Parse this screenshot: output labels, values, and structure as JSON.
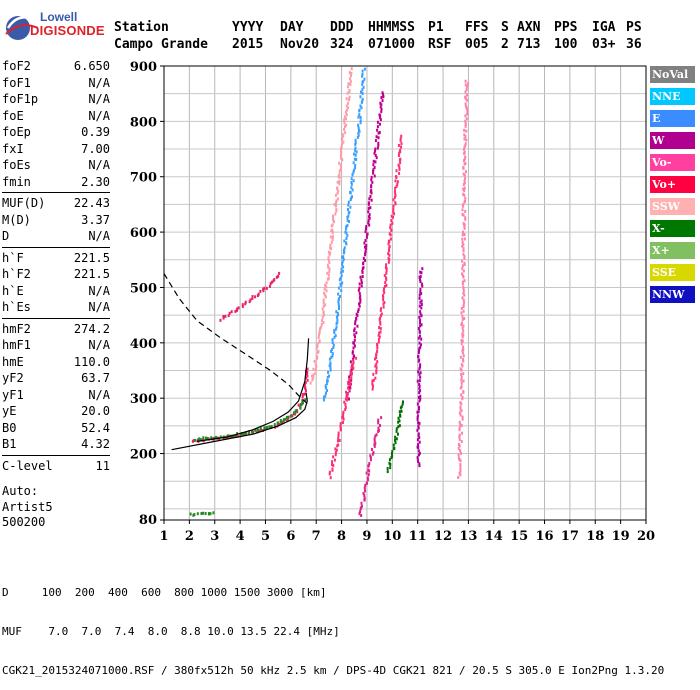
{
  "logo": {
    "line1": "Lowell",
    "line2": "DIGISONDE"
  },
  "header": {
    "labels": [
      "Station",
      "YYYY",
      "DAY",
      "DDD",
      "HHMMSS",
      "P1",
      "FFS",
      "S",
      "AXN",
      "PPS",
      "IGA",
      "PS"
    ],
    "values": [
      "Campo Grande",
      "2015",
      "Nov20",
      "324",
      "071000",
      "RSF",
      "005",
      "2",
      "713",
      "100",
      "03+",
      "36"
    ]
  },
  "params": {
    "group1": [
      [
        "foF2",
        "6.650"
      ],
      [
        "foF1",
        "N/A"
      ],
      [
        "foF1p",
        "N/A"
      ],
      [
        "foE",
        "N/A"
      ],
      [
        "foEp",
        "0.39"
      ],
      [
        "fxI",
        "7.00"
      ],
      [
        "foEs",
        "N/A"
      ],
      [
        "fmin",
        "2.30"
      ]
    ],
    "group2": [
      [
        "MUF(D)",
        "22.43"
      ],
      [
        "M(D)",
        "3.37"
      ],
      [
        "D",
        "N/A"
      ]
    ],
    "group3": [
      [
        "h`F",
        "221.5"
      ],
      [
        "h`F2",
        "221.5"
      ],
      [
        "h`E",
        "N/A"
      ],
      [
        "h`Es",
        "N/A"
      ]
    ],
    "group4": [
      [
        "hmF2",
        "274.2"
      ],
      [
        "hmF1",
        "N/A"
      ],
      [
        "hmE",
        "110.0"
      ],
      [
        "yF2",
        "63.7"
      ],
      [
        "yF1",
        "N/A"
      ],
      [
        "yE",
        "20.0"
      ],
      [
        "B0",
        "52.4"
      ],
      [
        "B1",
        "4.32"
      ]
    ],
    "group5": [
      [
        "C-level",
        "11"
      ]
    ]
  },
  "auto": {
    "line1": "Auto:",
    "line2": "Artist5",
    "line3": "500200"
  },
  "legend": [
    {
      "label": "NoVal",
      "color": "#808080"
    },
    {
      "label": "NNE",
      "color": "#00c8ff"
    },
    {
      "label": "E",
      "color": "#3a8cff"
    },
    {
      "label": "W",
      "color": "#b00090"
    },
    {
      "label": "Vo-",
      "color": "#ff40a0"
    },
    {
      "label": "Vo+",
      "color": "#ff0040"
    },
    {
      "label": "SSW",
      "color": "#ffb0b0"
    },
    {
      "label": "X-",
      "color": "#007800"
    },
    {
      "label": "X+",
      "color": "#80c060"
    },
    {
      "label": "SSE",
      "color": "#d8d800"
    },
    {
      "label": "NNW",
      "color": "#1010c0"
    }
  ],
  "footer": {
    "line1": "D     100  200  400  600  800 1000 1500 3000 [km]",
    "line2": "MUF    7.0  7.0  7.4  8.0  8.8 10.0 13.5 22.4 [MHz]",
    "line3": "CGK21_2015324071000.RSF / 380fx512h 50 kHz 2.5 km / DPS-4D CGK21 821 / 20.5 S 305.0 E Ion2Png 1.3.20"
  },
  "chart_data": {
    "type": "scatter",
    "xlim": [
      1,
      20
    ],
    "ylim": [
      80,
      900
    ],
    "xticks": [
      "1",
      "2",
      "3",
      "4",
      "5",
      "6",
      "7",
      "8",
      "9",
      "10",
      "11",
      "12",
      "13",
      "14",
      "15",
      "16",
      "17",
      "18",
      "19",
      "20"
    ],
    "yticks": [
      "80",
      "200",
      "300",
      "400",
      "500",
      "600",
      "700",
      "800",
      "900"
    ],
    "grid": true,
    "lines": [
      {
        "name": "profile-curve",
        "color": "#000000",
        "dash": "none",
        "points": [
          [
            1.3,
            207
          ],
          [
            3,
            222
          ],
          [
            4.5,
            235
          ],
          [
            5.5,
            250
          ],
          [
            6.2,
            265
          ],
          [
            6.55,
            280
          ],
          [
            6.65,
            295
          ],
          [
            6.6,
            310
          ]
        ]
      },
      {
        "name": "trace-curve",
        "color": "#000000",
        "dash": "none",
        "points": [
          [
            2.3,
            222
          ],
          [
            3.5,
            230
          ],
          [
            4.5,
            243
          ],
          [
            5.3,
            258
          ],
          [
            5.9,
            275
          ],
          [
            6.3,
            295
          ],
          [
            6.55,
            330
          ],
          [
            6.65,
            370
          ],
          [
            6.7,
            408
          ]
        ]
      },
      {
        "name": "dashed-curve",
        "color": "#000000",
        "dash": "6,4",
        "points": [
          [
            1.0,
            525
          ],
          [
            1.6,
            480
          ],
          [
            2.3,
            440
          ],
          [
            3.2,
            410
          ],
          [
            4.2,
            380
          ],
          [
            5.2,
            350
          ],
          [
            5.9,
            325
          ],
          [
            6.3,
            305
          ],
          [
            6.65,
            290
          ]
        ]
      }
    ],
    "traces": [
      {
        "name": "F2 O-trace",
        "color": "#ff1a66",
        "points": [
          [
            2.1,
            225
          ],
          [
            3,
            229
          ],
          [
            4,
            236
          ],
          [
            4.7,
            243
          ],
          [
            5.3,
            252
          ],
          [
            5.8,
            263
          ],
          [
            6.2,
            278
          ],
          [
            6.45,
            300
          ],
          [
            6.58,
            330
          ],
          [
            6.63,
            360
          ]
        ]
      },
      {
        "name": "F2 X-trace",
        "color": "#228b22",
        "points": [
          [
            2.2,
            228
          ],
          [
            3.1,
            232
          ],
          [
            4.1,
            239
          ],
          [
            4.8,
            246
          ],
          [
            5.4,
            256
          ],
          [
            5.9,
            268
          ],
          [
            6.3,
            283
          ],
          [
            6.52,
            305
          ]
        ]
      },
      {
        "name": "F2 2nd-hop",
        "color": "#e8206a",
        "points": [
          [
            3.2,
            445
          ],
          [
            3.8,
            462
          ],
          [
            4.3,
            478
          ],
          [
            4.7,
            492
          ],
          [
            5.1,
            505
          ],
          [
            5.4,
            520
          ],
          [
            5.55,
            530
          ]
        ]
      },
      {
        "name": "oblique-1",
        "color": "#ff9aa8",
        "points": [
          [
            6.8,
            330
          ],
          [
            7.0,
            380
          ],
          [
            7.2,
            440
          ],
          [
            7.4,
            520
          ],
          [
            7.6,
            600
          ],
          [
            7.8,
            680
          ],
          [
            8.0,
            760
          ],
          [
            8.2,
            840
          ],
          [
            8.35,
            900
          ]
        ]
      },
      {
        "name": "oblique-2",
        "color": "#3aa0ff",
        "points": [
          [
            7.3,
            300
          ],
          [
            7.5,
            360
          ],
          [
            7.7,
            420
          ],
          [
            7.9,
            500
          ],
          [
            8.1,
            580
          ],
          [
            8.3,
            660
          ],
          [
            8.5,
            740
          ],
          [
            8.7,
            820
          ],
          [
            8.85,
            900
          ]
        ]
      },
      {
        "name": "oblique-3",
        "color": "#c0008c",
        "points": [
          [
            8.2,
            300
          ],
          [
            8.4,
            380
          ],
          [
            8.6,
            460
          ],
          [
            8.8,
            540
          ],
          [
            9.0,
            620
          ],
          [
            9.2,
            700
          ],
          [
            9.4,
            780
          ],
          [
            9.6,
            860
          ]
        ]
      },
      {
        "name": "oblique-4",
        "color": "#ff3070",
        "points": [
          [
            9.2,
            320
          ],
          [
            9.4,
            400
          ],
          [
            9.6,
            480
          ],
          [
            9.8,
            560
          ],
          [
            10.0,
            640
          ],
          [
            10.2,
            720
          ],
          [
            10.3,
            780
          ]
        ]
      },
      {
        "name": "oblique-5",
        "color": "#ff3070",
        "points": [
          [
            7.5,
            160
          ],
          [
            7.7,
            200
          ],
          [
            7.9,
            240
          ],
          [
            8.1,
            290
          ],
          [
            8.3,
            340
          ],
          [
            8.5,
            380
          ]
        ]
      },
      {
        "name": "oblique-6",
        "color": "#e0208c",
        "points": [
          [
            8.7,
            90
          ],
          [
            8.9,
            140
          ],
          [
            9.1,
            190
          ],
          [
            9.3,
            230
          ],
          [
            9.5,
            270
          ]
        ]
      },
      {
        "name": "oblique-7",
        "color": "#006f00",
        "points": [
          [
            9.8,
            170
          ],
          [
            10.0,
            210
          ],
          [
            10.2,
            250
          ],
          [
            10.4,
            300
          ]
        ]
      },
      {
        "name": "vertical-12.7",
        "color": "#ff80b0",
        "points": [
          [
            12.6,
            160
          ],
          [
            12.7,
            300
          ],
          [
            12.75,
            500
          ],
          [
            12.8,
            700
          ],
          [
            12.9,
            880
          ]
        ]
      },
      {
        "name": "vertical-11",
        "color": "#b000a0",
        "points": [
          [
            11.0,
            180
          ],
          [
            11.0,
            280
          ],
          [
            11.05,
            420
          ],
          [
            11.1,
            540
          ]
        ]
      },
      {
        "name": "low-E",
        "color": "#228b22",
        "points": [
          [
            2.0,
            92
          ],
          [
            2.3,
            94
          ],
          [
            2.6,
            95
          ],
          [
            3.0,
            96
          ]
        ]
      }
    ]
  }
}
